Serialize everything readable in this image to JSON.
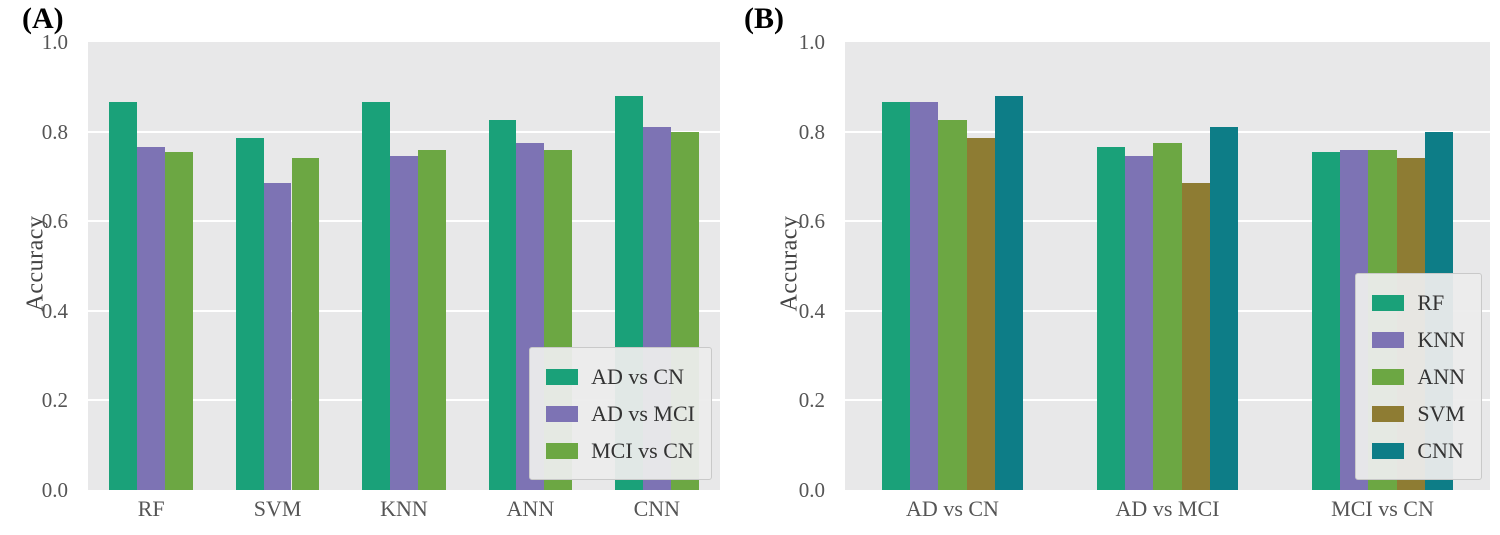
{
  "figure": {
    "panels": [
      "(A)",
      "(B)"
    ],
    "plot_background": "#e8e8e9",
    "grid_color": "#ffffff"
  },
  "chart_data": [
    {
      "type": "bar",
      "panel_label": "(A)",
      "title": "",
      "xlabel": "",
      "ylabel": "Accuracy",
      "ylim": [
        0,
        1
      ],
      "yticks": [
        "0.0",
        "0.2",
        "0.4",
        "0.6",
        "0.8",
        "1.0"
      ],
      "grid": true,
      "legend_position": "lower right",
      "categories": [
        "RF",
        "SVM",
        "KNN",
        "ANN",
        "CNN"
      ],
      "series": [
        {
          "name": "AD vs CN",
          "color": "#1aa179",
          "values": [
            0.865,
            0.785,
            0.865,
            0.825,
            0.88
          ]
        },
        {
          "name": "AD vs MCI",
          "color": "#7d73b4",
          "values": [
            0.765,
            0.685,
            0.745,
            0.775,
            0.81
          ]
        },
        {
          "name": "MCI vs CN",
          "color": "#6ca743",
          "values": [
            0.755,
            0.74,
            0.76,
            0.76,
            0.8
          ]
        }
      ]
    },
    {
      "type": "bar",
      "panel_label": "(B)",
      "title": "",
      "xlabel": "",
      "ylabel": "Accuracy",
      "ylim": [
        0,
        1
      ],
      "yticks": [
        "0.0",
        "0.2",
        "0.4",
        "0.6",
        "0.8",
        "1.0"
      ],
      "grid": true,
      "legend_position": "lower right",
      "categories": [
        "AD vs CN",
        "AD vs MCI",
        "MCI vs CN"
      ],
      "series": [
        {
          "name": "RF",
          "color": "#1aa179",
          "values": [
            0.865,
            0.765,
            0.755
          ]
        },
        {
          "name": "KNN",
          "color": "#7d73b4",
          "values": [
            0.865,
            0.745,
            0.76
          ]
        },
        {
          "name": "ANN",
          "color": "#6ca743",
          "values": [
            0.825,
            0.775,
            0.76
          ]
        },
        {
          "name": "SVM",
          "color": "#8e7c33",
          "values": [
            0.785,
            0.685,
            0.74
          ]
        },
        {
          "name": "CNN",
          "color": "#0d7d87",
          "values": [
            0.88,
            0.81,
            0.8
          ]
        }
      ]
    }
  ]
}
